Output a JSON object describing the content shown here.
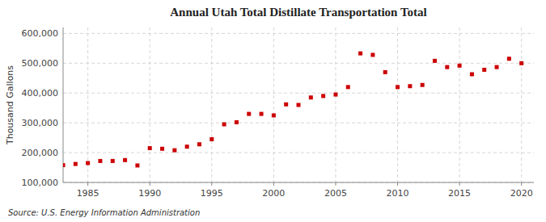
{
  "chart_data": {
    "type": "scatter",
    "title": "Annual Utah Total Distillate Transportation Total",
    "ylabel": "Thousand Gallons",
    "annotation": "Source: U.S. Energy Information Administration",
    "color": "#cc0000",
    "marker": "square",
    "grid": true,
    "xlim": [
      1983,
      2021
    ],
    "ylim": [
      100000,
      620000
    ],
    "xticks": [
      1985,
      1990,
      1995,
      2000,
      2005,
      2010,
      2015,
      2020
    ],
    "yticks": [
      {
        "value": 100000,
        "label": "100,000"
      },
      {
        "value": 200000,
        "label": "200,000"
      },
      {
        "value": 300000,
        "label": "300,000"
      },
      {
        "value": 400000,
        "label": "400,000"
      },
      {
        "value": 500000,
        "label": "500,000"
      },
      {
        "value": 600000,
        "label": "600,000"
      }
    ],
    "x": [
      1983,
      1984,
      1985,
      1986,
      1987,
      1988,
      1989,
      1990,
      1991,
      1992,
      1993,
      1994,
      1995,
      1996,
      1997,
      1998,
      1999,
      2000,
      2001,
      2002,
      2003,
      2004,
      2005,
      2006,
      2007,
      2008,
      2009,
      2010,
      2011,
      2012,
      2013,
      2014,
      2015,
      2016,
      2017,
      2018,
      2019,
      2020
    ],
    "values": [
      158000,
      162000,
      165000,
      172000,
      172000,
      175000,
      157000,
      215000,
      213000,
      208000,
      220000,
      228000,
      245000,
      295000,
      302000,
      330000,
      330000,
      325000,
      362000,
      360000,
      385000,
      390000,
      395000,
      420000,
      533000,
      528000,
      470000,
      420000,
      423000,
      427000,
      508000,
      487000,
      492000,
      463000,
      478000,
      487000,
      515000,
      500000
    ]
  }
}
